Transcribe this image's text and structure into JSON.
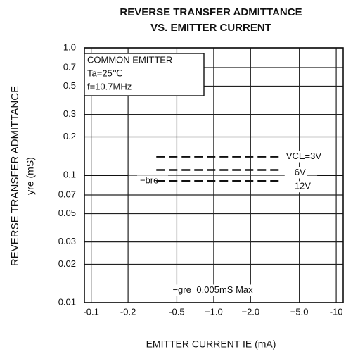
{
  "chart_data": {
    "type": "line",
    "title": [
      "REVERSE TRANSFER ADMITTANCE",
      "VS. EMITTER CURRENT"
    ],
    "x_label": "EMITTER CURRENT   IE (mA)",
    "y_label": [
      "REVERSE TRANSFER ADMITTANCE",
      "yre (mS)"
    ],
    "conditions": [
      "COMMON EMITTER",
      "Ta=25℃",
      "f=10.7MHz"
    ],
    "annotations": [
      "−bre",
      "−gre=0.005mS Max"
    ],
    "log_x": true,
    "log_y": true,
    "grid": true,
    "xlim": [
      -0.088,
      -11.4
    ],
    "xticks": [
      -0.1,
      -0.2,
      -0.5,
      {
        "value": -1,
        "label": "−1.0"
      },
      {
        "value": -2,
        "label": "−2.0"
      },
      {
        "value": -5,
        "label": "−5.0"
      },
      -10
    ],
    "ylim": [
      0.01,
      1
    ],
    "yticks": [
      0.01,
      0.02,
      0.03,
      0.05,
      0.07,
      0.1,
      0.2,
      0.3,
      0.5,
      0.7,
      {
        "value": 1,
        "label": "1.0"
      }
    ],
    "series": [
      {
        "name": "VCE=3V",
        "color": "#111111",
        "x": [
          -0.34,
          -3.6
        ],
        "values": [
          0.14,
          0.14
        ]
      },
      {
        "name": "6V",
        "color": "#111111",
        "x": [
          -0.34,
          -3.6
        ],
        "values": [
          0.11,
          0.11
        ]
      },
      {
        "name": "12V",
        "color": "#111111",
        "x": [
          -0.34,
          -3.6
        ],
        "values": [
          0.09,
          0.09
        ]
      }
    ]
  }
}
